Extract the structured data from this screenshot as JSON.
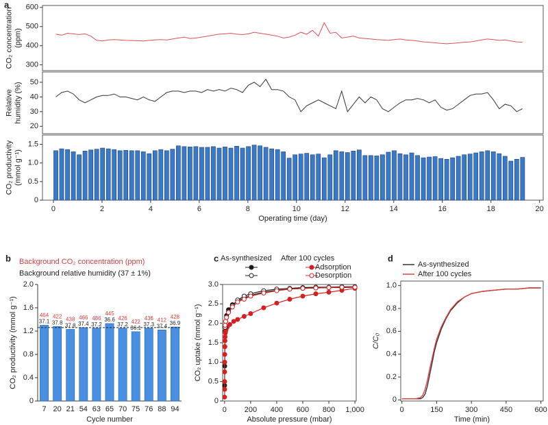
{
  "chart_data": [
    {
      "type": "line",
      "panel": "a",
      "y_label": [
        "CO₂ concentration",
        "(ppm)"
      ],
      "color": "#e05050",
      "xlim": [
        -0.45,
        20.15
      ],
      "ylim": [
        270,
        610
      ],
      "yticks": [
        300,
        400,
        500,
        600
      ],
      "x": [
        0.1,
        0.34,
        0.58,
        0.82,
        1.06,
        1.3,
        1.54,
        1.78,
        2.02,
        2.26,
        2.5,
        2.74,
        2.98,
        3.22,
        3.46,
        3.7,
        3.94,
        4.18,
        4.42,
        4.66,
        4.9,
        5.14,
        5.38,
        5.62,
        5.86,
        6.1,
        6.34,
        6.58,
        6.82,
        7.06,
        7.3,
        7.54,
        7.78,
        8.02,
        8.26,
        8.5,
        8.74,
        8.98,
        9.22,
        9.46,
        9.7,
        9.94,
        10.18,
        10.42,
        10.66,
        10.9,
        11.14,
        11.38,
        11.62,
        11.86,
        12.1,
        12.34,
        12.58,
        12.82,
        13.06,
        13.3,
        13.54,
        13.78,
        14.02,
        14.26,
        14.5,
        14.74,
        14.98,
        15.22,
        15.46,
        15.7,
        15.94,
        16.18,
        16.42,
        16.66,
        16.9,
        17.14,
        17.38,
        17.62,
        17.86,
        18.1,
        18.34,
        18.58,
        18.82,
        19.06,
        19.3
      ],
      "values": [
        460,
        455,
        465,
        462,
        458,
        462,
        450,
        428,
        425,
        430,
        432,
        430,
        428,
        427,
        426,
        425,
        428,
        430,
        432,
        430,
        435,
        440,
        445,
        438,
        440,
        445,
        450,
        455,
        460,
        462,
        465,
        460,
        458,
        462,
        470,
        465,
        460,
        455,
        450,
        440,
        445,
        455,
        470,
        460,
        480,
        450,
        520,
        465,
        470,
        440,
        445,
        450,
        440,
        438,
        435,
        432,
        430,
        428,
        432,
        435,
        430,
        428,
        425,
        420,
        418,
        415,
        412,
        410,
        412,
        415,
        418,
        420,
        425,
        430,
        435,
        432,
        428,
        430,
        425,
        420,
        418
      ]
    },
    {
      "type": "line",
      "y_label": [
        "Relative",
        "humidity (%)"
      ],
      "color": "#333333",
      "xlim": [
        -0.45,
        20.15
      ],
      "ylim": [
        15,
        57
      ],
      "yticks": [
        20,
        30,
        40,
        50
      ],
      "x": [
        0.1,
        0.34,
        0.58,
        0.82,
        1.06,
        1.3,
        1.54,
        1.78,
        2.02,
        2.26,
        2.5,
        2.74,
        2.98,
        3.22,
        3.46,
        3.7,
        3.94,
        4.18,
        4.42,
        4.66,
        4.9,
        5.14,
        5.38,
        5.62,
        5.86,
        6.1,
        6.34,
        6.58,
        6.82,
        7.06,
        7.3,
        7.54,
        7.78,
        8.02,
        8.26,
        8.5,
        8.74,
        8.98,
        9.22,
        9.46,
        9.7,
        9.94,
        10.18,
        10.42,
        10.66,
        10.9,
        11.14,
        11.38,
        11.62,
        11.86,
        12.1,
        12.34,
        12.58,
        12.82,
        13.06,
        13.3,
        13.54,
        13.78,
        14.02,
        14.26,
        14.5,
        14.74,
        14.98,
        15.22,
        15.46,
        15.7,
        15.94,
        16.18,
        16.42,
        16.66,
        16.9,
        17.14,
        17.38,
        17.62,
        17.86,
        18.1,
        18.34,
        18.58,
        18.82,
        19.06,
        19.3
      ],
      "values": [
        40,
        43,
        44,
        42,
        38,
        36,
        38,
        40,
        41,
        41,
        42,
        40,
        40,
        39,
        38,
        40,
        38,
        37,
        40,
        43,
        44,
        44,
        43,
        44,
        44,
        43,
        45,
        44,
        45,
        44,
        46,
        45,
        43,
        48,
        50,
        47,
        52,
        45,
        45,
        44,
        40,
        38,
        30,
        34,
        36,
        38,
        36,
        34,
        32,
        44,
        30,
        35,
        40,
        36,
        40,
        38,
        32,
        30,
        33,
        36,
        38,
        38,
        39,
        38,
        36,
        38,
        33,
        31,
        32,
        35,
        38,
        41,
        42,
        42,
        43,
        38,
        32,
        35,
        34,
        30,
        32
      ]
    },
    {
      "type": "bar",
      "y_label": [
        "CO₂ productivity",
        "(mmol g⁻¹)"
      ],
      "x_label": "Operating time (day)",
      "color": "#3a78c8",
      "xlim": [
        -0.45,
        20.15
      ],
      "xticks": [
        0,
        2,
        4,
        6,
        8,
        10,
        12,
        14,
        16,
        18,
        20
      ],
      "ylim": [
        0,
        1.75
      ],
      "yticks": [
        0,
        0.5,
        {
          "value": 1,
          "label": "1.0"
        },
        1.5
      ],
      "x": [
        0.1,
        0.34,
        0.58,
        0.82,
        1.06,
        1.3,
        1.54,
        1.78,
        2.02,
        2.26,
        2.5,
        2.74,
        2.98,
        3.22,
        3.46,
        3.7,
        3.94,
        4.18,
        4.42,
        4.66,
        4.9,
        5.14,
        5.38,
        5.62,
        5.86,
        6.1,
        6.34,
        6.58,
        6.82,
        7.06,
        7.3,
        7.54,
        7.78,
        8.02,
        8.26,
        8.5,
        8.74,
        8.98,
        9.22,
        9.46,
        9.7,
        9.94,
        10.18,
        10.42,
        10.66,
        10.9,
        11.14,
        11.38,
        11.62,
        11.86,
        12.1,
        12.34,
        12.58,
        12.82,
        13.06,
        13.3,
        13.54,
        13.78,
        14.02,
        14.26,
        14.5,
        14.74,
        14.98,
        15.22,
        15.46,
        15.7,
        15.94,
        16.18,
        16.42,
        16.66,
        16.9,
        17.14,
        17.38,
        17.62,
        17.86,
        18.1,
        18.34,
        18.58,
        18.82,
        19.06,
        19.3
      ],
      "values": [
        1.33,
        1.38,
        1.36,
        1.3,
        1.22,
        1.32,
        1.35,
        1.37,
        1.4,
        1.38,
        1.36,
        1.33,
        1.34,
        1.33,
        1.33,
        1.3,
        1.25,
        1.33,
        1.36,
        1.33,
        1.37,
        1.46,
        1.44,
        1.43,
        1.44,
        1.42,
        1.42,
        1.44,
        1.4,
        1.43,
        1.4,
        1.45,
        1.4,
        1.44,
        1.48,
        1.46,
        1.42,
        1.38,
        1.36,
        1.3,
        1.13,
        1.22,
        1.24,
        1.26,
        1.22,
        1.24,
        1.14,
        1.22,
        1.33,
        1.3,
        1.28,
        1.32,
        1.35,
        1.2,
        1.2,
        1.19,
        1.22,
        1.29,
        1.33,
        1.25,
        1.22,
        1.27,
        1.2,
        1.14,
        1.16,
        1.17,
        1.12,
        1.1,
        1.14,
        1.18,
        1.22,
        1.24,
        1.27,
        1.3,
        1.33,
        1.3,
        1.25,
        1.18,
        1.05,
        1.1,
        1.15
      ]
    },
    {
      "type": "bar",
      "panel": "b",
      "y_label": [
        "CO₂ productivity (mmol g⁻¹)"
      ],
      "x_label": "Cycle number",
      "color": "#4a90e2",
      "categories": [
        "7",
        "20",
        "21",
        "54",
        "63",
        "65",
        "70",
        "75",
        "76",
        "88",
        "94"
      ],
      "values": [
        1.3,
        1.28,
        1.23,
        1.26,
        1.25,
        1.33,
        1.25,
        1.19,
        1.25,
        1.22,
        1.27
      ],
      "reference_line": 1.26,
      "ylim": [
        0,
        2.0
      ],
      "yticks": [
        0,
        0.4,
        0.8,
        1.2,
        1.6,
        {
          "value": 2,
          "label": "2.0"
        }
      ],
      "annotations": {
        "co2": {
          "label": "Background CO₂ concentration (ppm)",
          "color": "#e03c3c",
          "values": [
            464,
            422,
            438,
            466,
            486,
            445,
            426,
            422,
            436,
            412,
            428
          ]
        },
        "rh": {
          "label": "Background relative humidity (37 ± 1%)",
          "color": "#222222",
          "values": [
            37.1,
            37.8,
            37.8,
            37.4,
            37.2,
            36.6,
            37.2,
            36.1,
            37.3,
            37.4,
            36.9
          ]
        }
      }
    },
    {
      "type": "scatter",
      "panel": "c",
      "y_label": [
        "CO₂ uptake (mmol g⁻¹)"
      ],
      "x_label": "Absolute pressure (mbar)",
      "xlim": [
        -15,
        1010
      ],
      "xticks": [
        0,
        200,
        400,
        600,
        800,
        {
          "value": 1000,
          "label": "1,000"
        }
      ],
      "ylim": [
        0,
        3.0
      ],
      "yticks": [
        0,
        0.5,
        {
          "value": 1,
          "label": "1.0"
        },
        1.5,
        {
          "value": 2,
          "label": "2.0"
        },
        2.5,
        {
          "value": 3,
          "label": "3.0"
        }
      ],
      "branches": [
        "Adsorption",
        "Desorption"
      ],
      "series": [
        {
          "name": "As-synthesized",
          "color": "#1a1a1a",
          "adsorption": {
            "x": [
              0.5,
              1,
              2,
              4,
              8,
              15,
              30,
              60,
              100,
              200,
              300,
              400,
              500,
              600,
              700,
              800,
              900,
              1000
            ],
            "values": [
              0.4,
              0.9,
              1.4,
              1.8,
              2.05,
              2.2,
              2.35,
              2.48,
              2.58,
              2.72,
              2.8,
              2.85,
              2.88,
              2.9,
              2.91,
              2.92,
              2.92,
              2.93
            ]
          },
          "desorption": {
            "x": [
              1000,
              900,
              800,
              700,
              600,
              500,
              400,
              300,
              200,
              150,
              100,
              60,
              30,
              15,
              8,
              4
            ],
            "values": [
              2.94,
              2.94,
              2.93,
              2.93,
              2.92,
              2.9,
              2.88,
              2.84,
              2.76,
              2.7,
              2.6,
              2.45,
              2.3,
              2.15,
              2.05,
              1.9
            ]
          }
        },
        {
          "name": "After 100 cycles",
          "color": "#d42020",
          "adsorption": {
            "x": [
              0.2,
              0.4,
              0.6,
              0.8,
              1,
              1.5,
              2,
              3,
              4,
              6,
              8,
              12,
              20,
              40,
              70,
              100,
              150,
              200,
              300,
              400,
              500,
              600,
              700,
              800,
              900,
              1000
            ],
            "values": [
              0.1,
              0.3,
              0.5,
              0.75,
              1.0,
              1.2,
              1.4,
              1.55,
              1.65,
              1.75,
              1.8,
              1.85,
              1.9,
              1.97,
              2.05,
              2.1,
              2.18,
              2.25,
              2.4,
              2.52,
              2.62,
              2.7,
              2.76,
              2.8,
              2.85,
              2.9
            ]
          },
          "desorption": {
            "x": [
              1000,
              900,
              800,
              700,
              600,
              500,
              400,
              300,
              200,
              150,
              100,
              60,
              30,
              15,
              8,
              4
            ],
            "values": [
              2.93,
              2.93,
              2.92,
              2.91,
              2.9,
              2.88,
              2.84,
              2.78,
              2.7,
              2.62,
              2.55,
              2.42,
              2.28,
              2.15,
              2.05,
              1.95
            ]
          }
        }
      ]
    },
    {
      "type": "line",
      "panel": "d",
      "y_label": [
        "C/C₀"
      ],
      "x_label": "Time (min)",
      "xlim": [
        -5,
        610
      ],
      "xticks": [
        0,
        150,
        300,
        450,
        600
      ],
      "ylim": [
        -0.01,
        1.04
      ],
      "yticks": [
        0,
        0.2,
        0.4,
        0.6,
        0.8,
        {
          "value": 1,
          "label": "1.0"
        }
      ],
      "x": [
        0,
        20,
        40,
        60,
        80,
        90,
        100,
        110,
        120,
        130,
        140,
        150,
        170,
        190,
        210,
        240,
        270,
        300,
        350,
        400,
        450,
        500,
        550,
        600
      ],
      "series": [
        {
          "name": "As-synthesized",
          "color": "#333333",
          "values": [
            0.01,
            0.01,
            0.01,
            0.01,
            0.01,
            0.02,
            0.05,
            0.12,
            0.22,
            0.32,
            0.42,
            0.5,
            0.62,
            0.71,
            0.78,
            0.85,
            0.9,
            0.93,
            0.95,
            0.96,
            0.97,
            0.97,
            0.98,
            0.98
          ]
        },
        {
          "name": "After 100 cycles",
          "color": "#e04040",
          "values": [
            0.01,
            0.01,
            0.01,
            0.01,
            0.02,
            0.04,
            0.09,
            0.17,
            0.27,
            0.36,
            0.45,
            0.53,
            0.64,
            0.72,
            0.79,
            0.86,
            0.9,
            0.93,
            0.95,
            0.96,
            0.97,
            0.97,
            0.98,
            0.98
          ]
        }
      ]
    }
  ]
}
